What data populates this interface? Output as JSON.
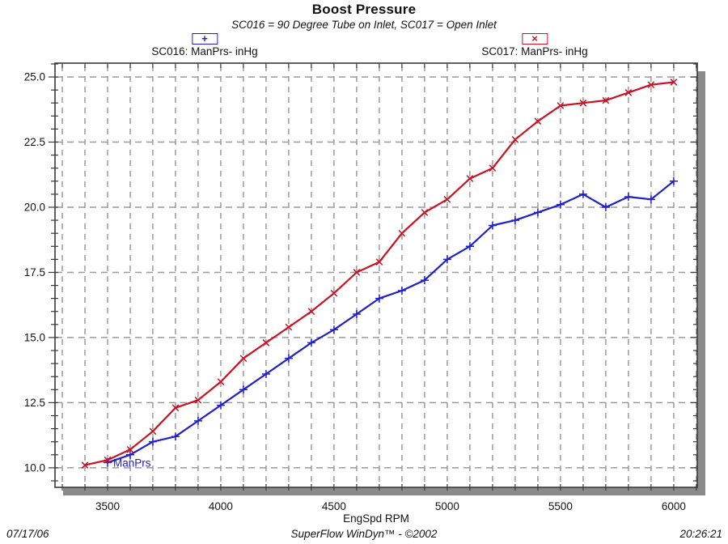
{
  "title": "Boost Pressure",
  "subtitle": "SC016 = 90 Degree Tube on Inlet, SC017 = Open Inlet",
  "legend": [
    {
      "id": "sc016",
      "glyph": "+",
      "label": "SC016: ManPrs- inHg",
      "color": "#2020c8"
    },
    {
      "id": "sc017",
      "glyph": "×",
      "label": "SC017: ManPrs- inHg",
      "color": "#cc1122"
    }
  ],
  "footer": {
    "date": "07/17/06",
    "center": "SuperFlow WinDyn™ - ©2002",
    "time": "20:26:21"
  },
  "colors": {
    "series_sc016": "#2020c8",
    "series_sc017": "#cc1122",
    "grid": "#9a9a9a",
    "frame": "#3a3a3a",
    "shadow": "#8a8a8a",
    "text": "#111111"
  },
  "chart_data": {
    "type": "line",
    "title": "Boost Pressure",
    "subtitle": "SC016 = 90 Degree Tube on Inlet, SC017 = Open Inlet",
    "xlabel": "EngSpd RPM",
    "ylabel": "",
    "unit": "inHg",
    "xlim": [
      3268,
      6104
    ],
    "ylim": [
      9.25,
      25.53
    ],
    "x_tick_labels": [
      3500,
      4000,
      4500,
      5000,
      5500,
      6000
    ],
    "y_tick_labels": [
      10.0,
      12.5,
      15.0,
      17.5,
      20.0,
      22.5,
      25.0
    ],
    "x_grid_step": 100,
    "y_grid_step": 2.5,
    "y_minor_tick_step": 0.5,
    "grid": "dashed",
    "legend_position": "top",
    "annotation": {
      "text": "ManPrs",
      "x": 3525,
      "y": 10.15,
      "series": "sc016"
    },
    "series": [
      {
        "name": "SC016: ManPrs- inHg",
        "marker": "plus",
        "color": "#2020c8",
        "x": [
          3500,
          3600,
          3700,
          3800,
          3900,
          4000,
          4100,
          4200,
          4300,
          4400,
          4500,
          4600,
          4700,
          4800,
          4900,
          5000,
          5100,
          5200,
          5300,
          5400,
          5500,
          5600,
          5700,
          5800,
          5900,
          6000
        ],
        "y": [
          10.2,
          10.5,
          11.0,
          11.2,
          11.8,
          12.4,
          13.0,
          13.6,
          14.2,
          14.8,
          15.3,
          15.9,
          16.5,
          16.8,
          17.2,
          18.0,
          18.5,
          19.3,
          19.5,
          19.8,
          20.1,
          20.5,
          20.0,
          20.4,
          20.3,
          21.0
        ]
      },
      {
        "name": "SC017: ManPrs- inHg",
        "marker": "cross",
        "color": "#cc1122",
        "x": [
          3400,
          3500,
          3600,
          3700,
          3800,
          3900,
          4000,
          4100,
          4200,
          4300,
          4400,
          4500,
          4600,
          4700,
          4800,
          4900,
          5000,
          5100,
          5200,
          5300,
          5400,
          5500,
          5600,
          5700,
          5800,
          5900,
          6000
        ],
        "y": [
          10.1,
          10.3,
          10.7,
          11.4,
          12.3,
          12.6,
          13.3,
          14.2,
          14.8,
          15.4,
          16.0,
          16.7,
          17.5,
          17.9,
          19.0,
          19.8,
          20.3,
          21.1,
          21.5,
          22.6,
          23.3,
          23.9,
          24.0,
          24.1,
          24.4,
          24.7,
          24.8
        ]
      }
    ]
  }
}
